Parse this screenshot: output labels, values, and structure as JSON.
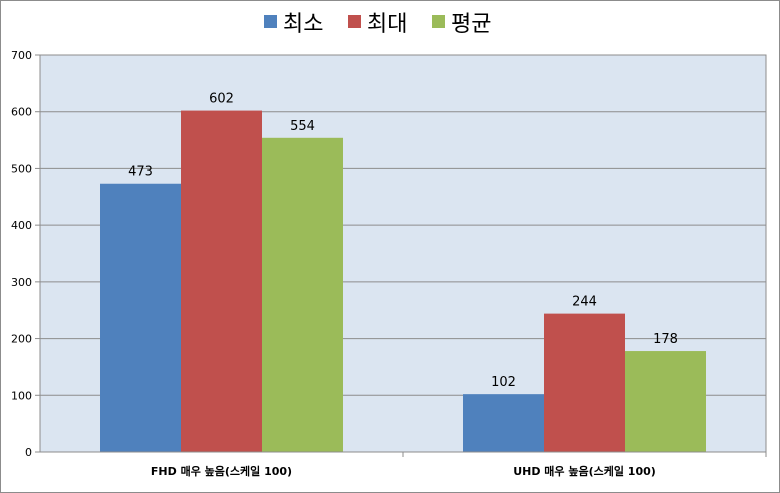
{
  "chart_data": {
    "type": "bar",
    "title": "",
    "xlabel": "",
    "ylabel": "",
    "categories": [
      "FHD 매우 높음(스케일 100)",
      "UHD 매우 높음(스케일 100)"
    ],
    "series": [
      {
        "name": "최소",
        "values": [
          473,
          102
        ],
        "color": "#4F81BD"
      },
      {
        "name": "최대",
        "values": [
          602,
          244
        ],
        "color": "#C0504D"
      },
      {
        "name": "평균",
        "values": [
          554,
          178
        ],
        "color": "#9BBB59"
      }
    ],
    "ylim": [
      0,
      700
    ],
    "yticks": [
      0,
      100,
      200,
      300,
      400,
      500,
      600,
      700
    ],
    "grid": true,
    "legend_position": "top",
    "plot_background": "#DBE5F1",
    "gridline_color": "#8C8C8C"
  }
}
